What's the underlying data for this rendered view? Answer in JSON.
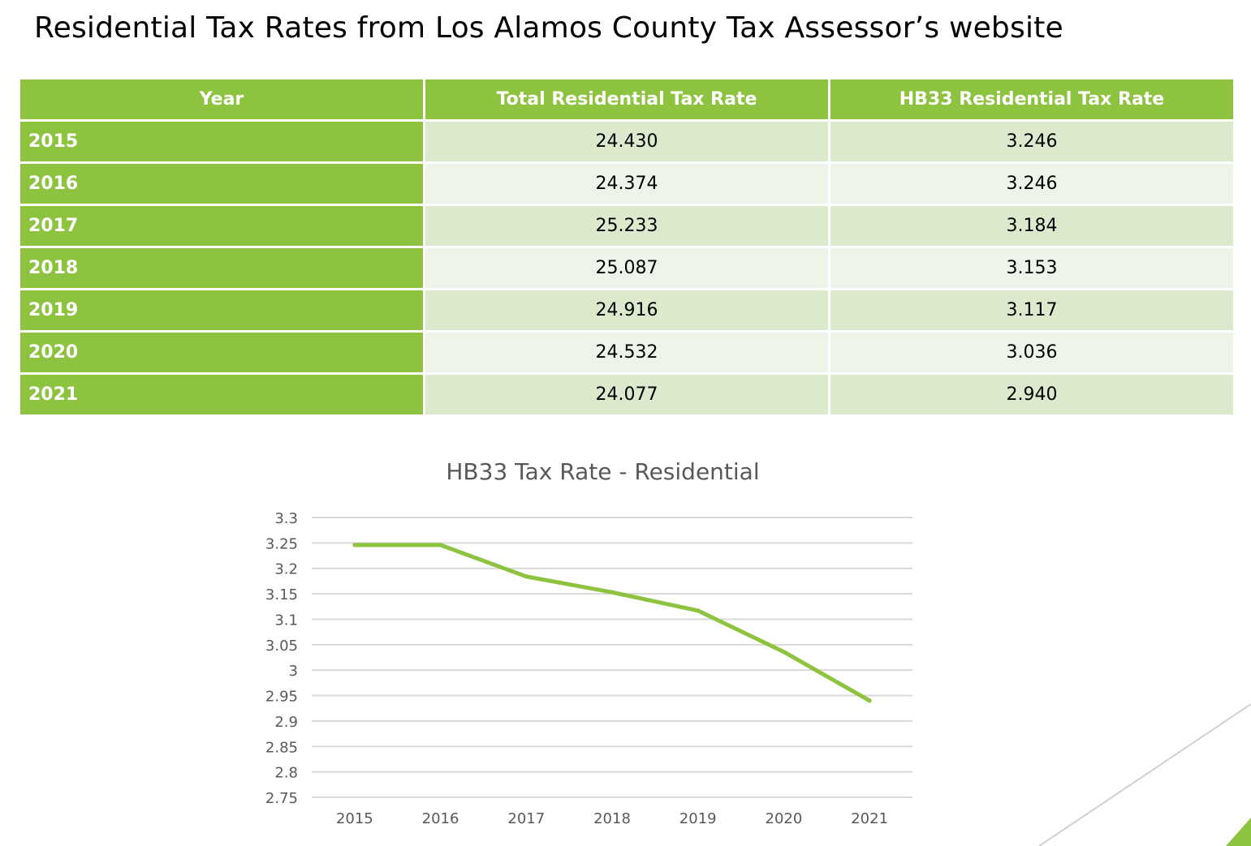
{
  "page": {
    "title": "Residential Tax Rates from Los Alamos County Tax Assessor’s website"
  },
  "table": {
    "headers": [
      "Year",
      "Total Residential Tax Rate",
      "HB33 Residential Tax Rate"
    ],
    "rows": [
      {
        "year": "2015",
        "total": "24.430",
        "hb33": "3.246"
      },
      {
        "year": "2016",
        "total": "24.374",
        "hb33": "3.246"
      },
      {
        "year": "2017",
        "total": "25.233",
        "hb33": "3.184"
      },
      {
        "year": "2018",
        "total": "25.087",
        "hb33": "3.153"
      },
      {
        "year": "2019",
        "total": "24.916",
        "hb33": "3.117"
      },
      {
        "year": "2020",
        "total": "24.532",
        "hb33": "3.036"
      },
      {
        "year": "2021",
        "total": "24.077",
        "hb33": "2.940"
      }
    ]
  },
  "colors": {
    "header_green": "#8dc33f",
    "row_light": "#dbeacd",
    "row_lighter": "#eef5e8",
    "line_green": "#8dc33f",
    "grid": "#d9d9d9",
    "axis_text": "#595959"
  },
  "chart_data": {
    "type": "line",
    "title": "HB33 Tax Rate - Residential",
    "xlabel": "",
    "ylabel": "",
    "categories": [
      "2015",
      "2016",
      "2017",
      "2018",
      "2019",
      "2020",
      "2021"
    ],
    "series": [
      {
        "values": [
          3.246,
          3.246,
          3.184,
          3.153,
          3.117,
          3.036,
          2.94
        ]
      }
    ],
    "yticks": [
      "3.3",
      "3.25",
      "3.2",
      "3.15",
      "3.1",
      "3.05",
      "3",
      "2.95",
      "2.9",
      "2.85",
      "2.8",
      "2.75"
    ],
    "ylim": [
      2.75,
      3.3
    ],
    "grid": true,
    "legend": "none"
  }
}
